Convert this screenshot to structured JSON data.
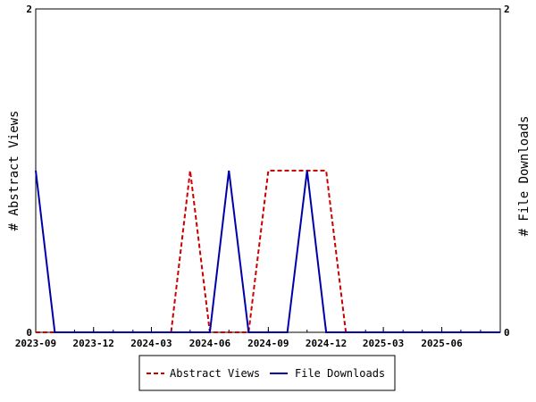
{
  "chart_data": {
    "type": "line",
    "y_left_label": "# Abstract Views",
    "y_right_label": "# File Downloads",
    "ylim": [
      0,
      2
    ],
    "y_ticks": [
      "0",
      "2"
    ],
    "x_range": [
      "2023-09-01",
      "2025-09-01"
    ],
    "x_ticks": [
      "2023-09",
      "2023-12",
      "2024-03",
      "2024-06",
      "2024-09",
      "2024-12",
      "2025-03",
      "2025-06"
    ],
    "grid": false,
    "legend_position": "bottom",
    "series": [
      {
        "name": "Abstract Views",
        "color": "#cc0000",
        "dash": "dashed",
        "points": [
          [
            "2023-09-01",
            0
          ],
          [
            "2023-10-01",
            0
          ],
          [
            "2023-11-01",
            0
          ],
          [
            "2023-12-01",
            0
          ],
          [
            "2024-01-01",
            0
          ],
          [
            "2024-02-01",
            0
          ],
          [
            "2024-03-01",
            0
          ],
          [
            "2024-04-01",
            0
          ],
          [
            "2024-05-01",
            1
          ],
          [
            "2024-06-01",
            0
          ],
          [
            "2024-07-01",
            0
          ],
          [
            "2024-08-01",
            0
          ],
          [
            "2024-09-01",
            1
          ],
          [
            "2024-10-01",
            1
          ],
          [
            "2024-11-01",
            1
          ],
          [
            "2024-12-01",
            1
          ],
          [
            "2025-01-01",
            0
          ],
          [
            "2025-02-01",
            0
          ],
          [
            "2025-03-01",
            0
          ],
          [
            "2025-04-01",
            0
          ],
          [
            "2025-05-01",
            0
          ],
          [
            "2025-06-01",
            0
          ],
          [
            "2025-07-01",
            0
          ],
          [
            "2025-08-01",
            0
          ],
          [
            "2025-09-01",
            0
          ]
        ]
      },
      {
        "name": "File Downloads",
        "color": "#0000aa",
        "dash": "solid",
        "points": [
          [
            "2023-09-01",
            1
          ],
          [
            "2023-10-01",
            0
          ],
          [
            "2023-11-01",
            0
          ],
          [
            "2023-12-01",
            0
          ],
          [
            "2024-01-01",
            0
          ],
          [
            "2024-02-01",
            0
          ],
          [
            "2024-03-01",
            0
          ],
          [
            "2024-04-01",
            0
          ],
          [
            "2024-05-01",
            0
          ],
          [
            "2024-06-01",
            0
          ],
          [
            "2024-07-01",
            1
          ],
          [
            "2024-08-01",
            0
          ],
          [
            "2024-09-01",
            0
          ],
          [
            "2024-10-01",
            0
          ],
          [
            "2024-11-01",
            1
          ],
          [
            "2024-12-01",
            0
          ],
          [
            "2025-01-01",
            0
          ],
          [
            "2025-02-01",
            0
          ],
          [
            "2025-03-01",
            0
          ],
          [
            "2025-04-01",
            0
          ],
          [
            "2025-05-01",
            0
          ],
          [
            "2025-06-01",
            0
          ],
          [
            "2025-07-01",
            0
          ],
          [
            "2025-08-01",
            0
          ],
          [
            "2025-09-01",
            0
          ]
        ]
      }
    ]
  }
}
